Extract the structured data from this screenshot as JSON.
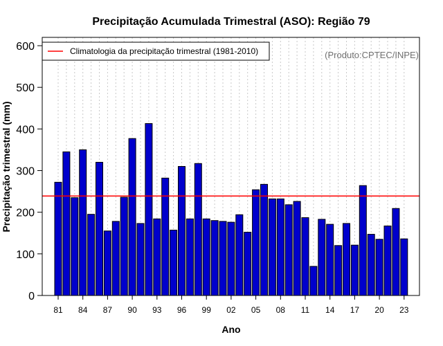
{
  "chart_data": {
    "type": "bar",
    "title": "Precipitação Acumulada Trimestral (ASO): Região 79",
    "xlabel": "Ano",
    "ylabel": "Precipitação trimestral (mm)",
    "ylim": [
      0,
      600
    ],
    "yticks": [
      0,
      100,
      200,
      300,
      400,
      500,
      600
    ],
    "credit": "(Produto:CPTEC/INPE)",
    "legend": {
      "label": "Climatologia da precipitação trimestral (1981-2010)",
      "placement": "top-left",
      "color": "#ff0000"
    },
    "climatology": 239,
    "bar_color": "#0000cc",
    "categories": [
      1981,
      1982,
      1983,
      1984,
      1985,
      1986,
      1987,
      1988,
      1989,
      1990,
      1991,
      1992,
      1993,
      1994,
      1995,
      1996,
      1997,
      1998,
      1999,
      2000,
      2001,
      2002,
      2003,
      2004,
      2005,
      2006,
      2007,
      2008,
      2009,
      2010,
      2011,
      2012,
      2013,
      2014,
      2015,
      2016,
      2017,
      2018,
      2019,
      2020,
      2021,
      2022,
      2023
    ],
    "values": [
      272,
      345,
      235,
      350,
      195,
      320,
      155,
      178,
      236,
      377,
      173,
      413,
      184,
      282,
      157,
      310,
      184,
      317,
      184,
      180,
      178,
      176,
      194,
      152,
      254,
      267,
      232,
      232,
      218,
      226,
      187,
      70,
      183,
      171,
      120,
      173,
      121,
      264,
      147,
      135,
      167,
      209,
      136
    ],
    "tick_labels": [
      "81",
      "84",
      "87",
      "90",
      "93",
      "96",
      "99",
      "02",
      "05",
      "08",
      "11",
      "14",
      "17",
      "20",
      "23"
    ]
  }
}
